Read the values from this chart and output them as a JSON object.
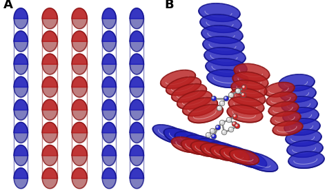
{
  "label_A": "A",
  "label_B": "B",
  "label_fontsize": 13,
  "label_fontweight": "bold",
  "background_color": "#ffffff",
  "helix_red": "#b82020",
  "helix_blue": "#2020bb",
  "helix_red_dark": "#8b1515",
  "helix_blue_dark": "#15158b",
  "fig_width": 4.74,
  "fig_height": 2.83,
  "atom_C": "#d4d4d4",
  "atom_N": "#2222cc",
  "atom_O": "#cc2222",
  "atom_bond": "#888888"
}
